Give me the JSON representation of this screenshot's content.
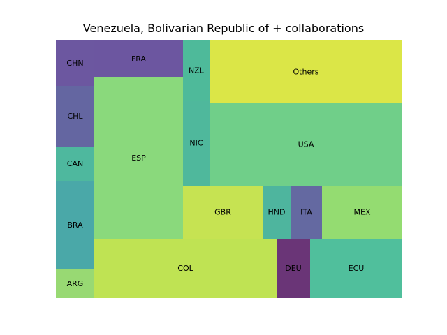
{
  "chart_data": {
    "type": "treemap",
    "title": "Venezuela, Bolivarian Republic of + collaborations",
    "axes_visible": false,
    "cells": [
      {
        "label": "CHN",
        "color": "#6c57a0"
      },
      {
        "label": "CHL",
        "color": "#6466a1"
      },
      {
        "label": "CAN",
        "color": "#4eb89e"
      },
      {
        "label": "BRA",
        "color": "#4aa8a8"
      },
      {
        "label": "ARG",
        "color": "#98d973"
      },
      {
        "label": "FRA",
        "color": "#6c56a0"
      },
      {
        "label": "ESP",
        "color": "#8ad97c"
      },
      {
        "label": "NZL",
        "color": "#4eba9a"
      },
      {
        "label": "NIC",
        "color": "#4fb89c"
      },
      {
        "label": "Others",
        "color": "#dbe647"
      },
      {
        "label": "USA",
        "color": "#70cf89"
      },
      {
        "label": "GBR",
        "color": "#c6e352"
      },
      {
        "label": "HND",
        "color": "#4eb59e"
      },
      {
        "label": "ITA",
        "color": "#6469a1"
      },
      {
        "label": "MEX",
        "color": "#94dc71"
      },
      {
        "label": "COL",
        "color": "#bfe353"
      },
      {
        "label": "DEU",
        "color": "#6a3577"
      },
      {
        "label": "ECU",
        "color": "#50bf9c"
      }
    ]
  }
}
